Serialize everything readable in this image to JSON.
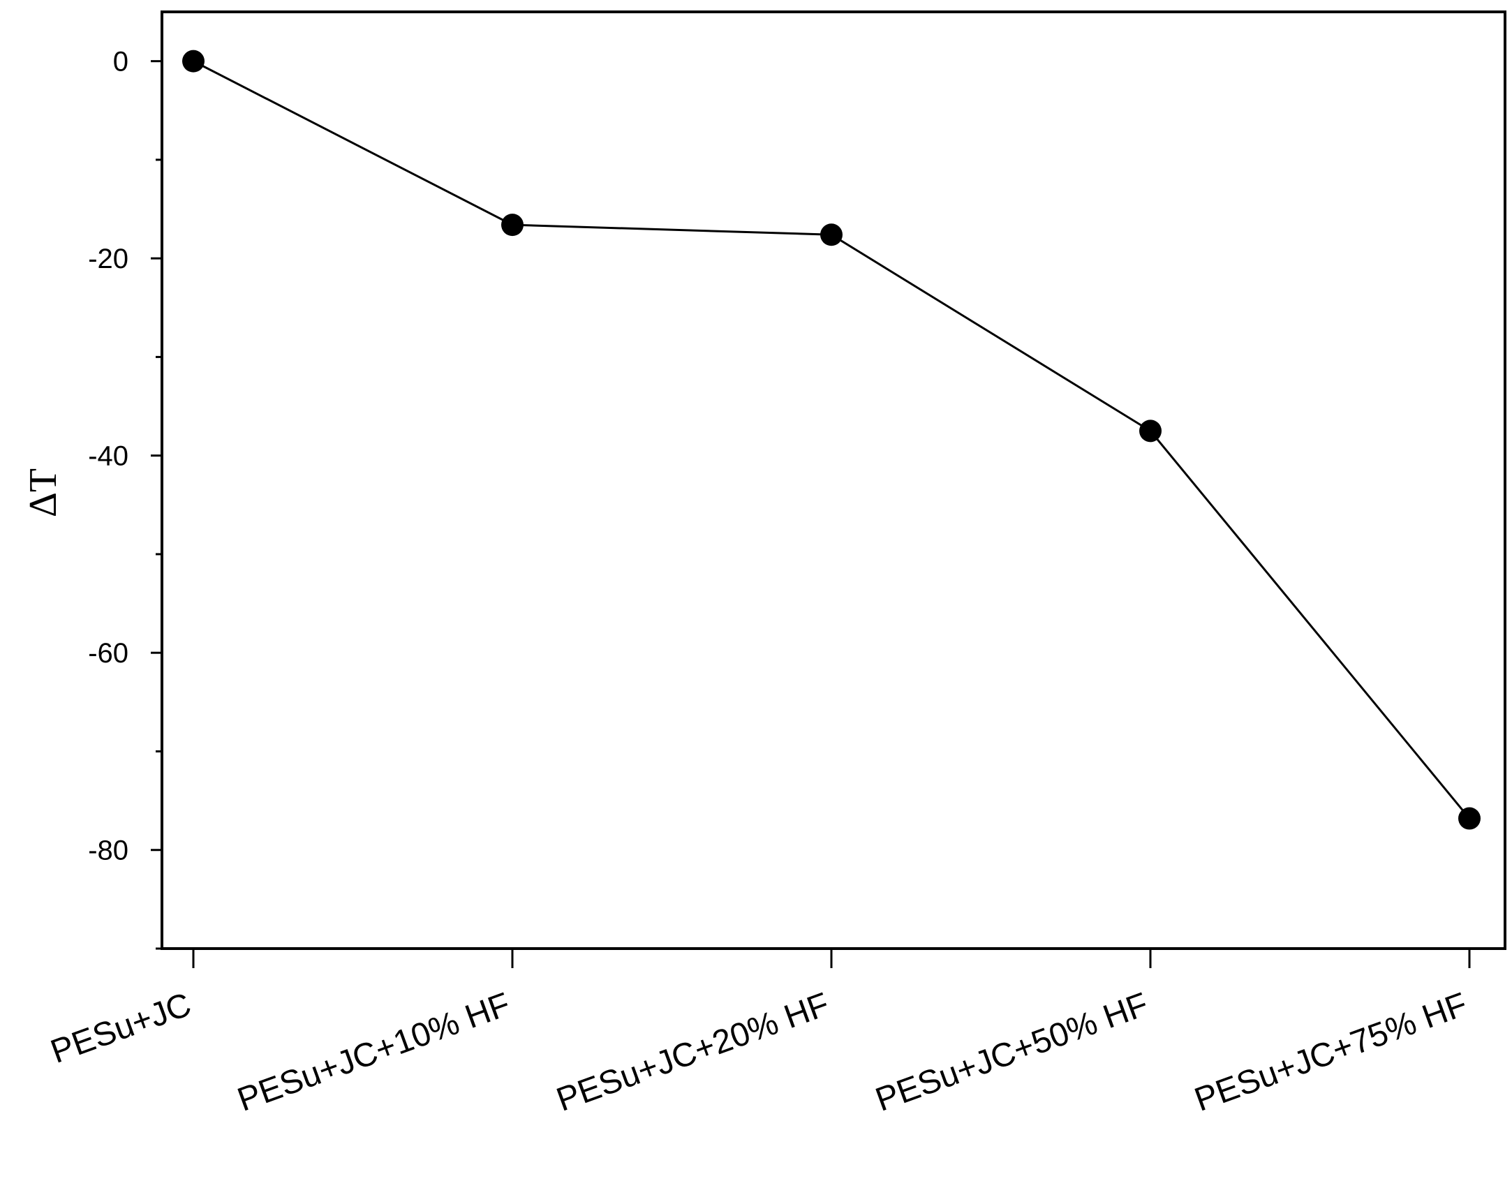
{
  "chart_data": {
    "type": "line",
    "title": "",
    "xlabel": "",
    "ylabel": "ΔT",
    "categories": [
      "PESu+JC",
      "PESu+JC+10% HF",
      "PESu+JC+20% HF",
      "PESu+JC+50% HF",
      "PESu+JC+75% HF"
    ],
    "values": [
      0,
      -16.6,
      -17.6,
      -37.5,
      -76.8
    ],
    "ylim": [
      -90,
      5
    ],
    "yticks_major": [
      0,
      -20,
      -40,
      -60,
      -80
    ],
    "yticks_minor": [
      -10,
      -30,
      -50,
      -70,
      -90
    ],
    "grid": false,
    "legend": "none",
    "marker": "filled-circle",
    "line_color": "#000000",
    "marker_color": "#000000"
  }
}
